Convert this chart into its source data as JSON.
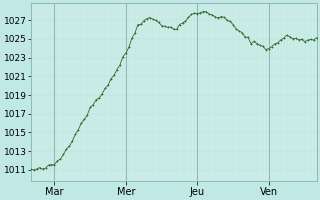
{
  "bg_color": "#c0e8e4",
  "plot_bg_color": "#cceee8",
  "grid_color_minor": "#b8dcd8",
  "grid_color_major": "#90b8b4",
  "line_color": "#2d6b2d",
  "yticks": [
    1011,
    1013,
    1015,
    1017,
    1019,
    1021,
    1023,
    1025,
    1027
  ],
  "ylim": [
    1009.8,
    1028.8
  ],
  "xlim": [
    0,
    96
  ],
  "xtick_positions": [
    8,
    32,
    56,
    80
  ],
  "xtick_labels": [
    "Mar",
    "Mer",
    "Jeu",
    "Ven"
  ],
  "vline_positions": [
    8,
    32,
    56,
    80
  ],
  "tick_fontsize": 6.5,
  "xlabel_fontsize": 7,
  "control_points": {
    "0": 1011.0,
    "2": 1011.0,
    "4": 1011.1,
    "6": 1011.3,
    "8": 1011.6,
    "10": 1012.2,
    "12": 1013.2,
    "14": 1014.3,
    "16": 1015.4,
    "18": 1016.5,
    "20": 1017.5,
    "22": 1018.5,
    "24": 1019.2,
    "26": 1020.2,
    "28": 1021.2,
    "30": 1022.3,
    "32": 1023.5,
    "34": 1025.0,
    "36": 1026.5,
    "38": 1027.1,
    "40": 1027.2,
    "42": 1027.0,
    "44": 1026.6,
    "46": 1026.3,
    "48": 1026.0,
    "50": 1026.5,
    "52": 1027.0,
    "54": 1027.5,
    "56": 1027.8,
    "58": 1027.9,
    "60": 1027.7,
    "62": 1027.5,
    "64": 1027.3,
    "66": 1027.0,
    "68": 1026.5,
    "70": 1025.8,
    "72": 1025.2,
    "74": 1024.8,
    "76": 1024.5,
    "78": 1024.2,
    "80": 1024.0,
    "82": 1024.3,
    "84": 1025.0,
    "86": 1025.3,
    "88": 1025.1,
    "90": 1024.9,
    "92": 1024.8,
    "94": 1025.0,
    "96": 1025.1
  },
  "noise_seed": 42,
  "noise_std": 0.12
}
